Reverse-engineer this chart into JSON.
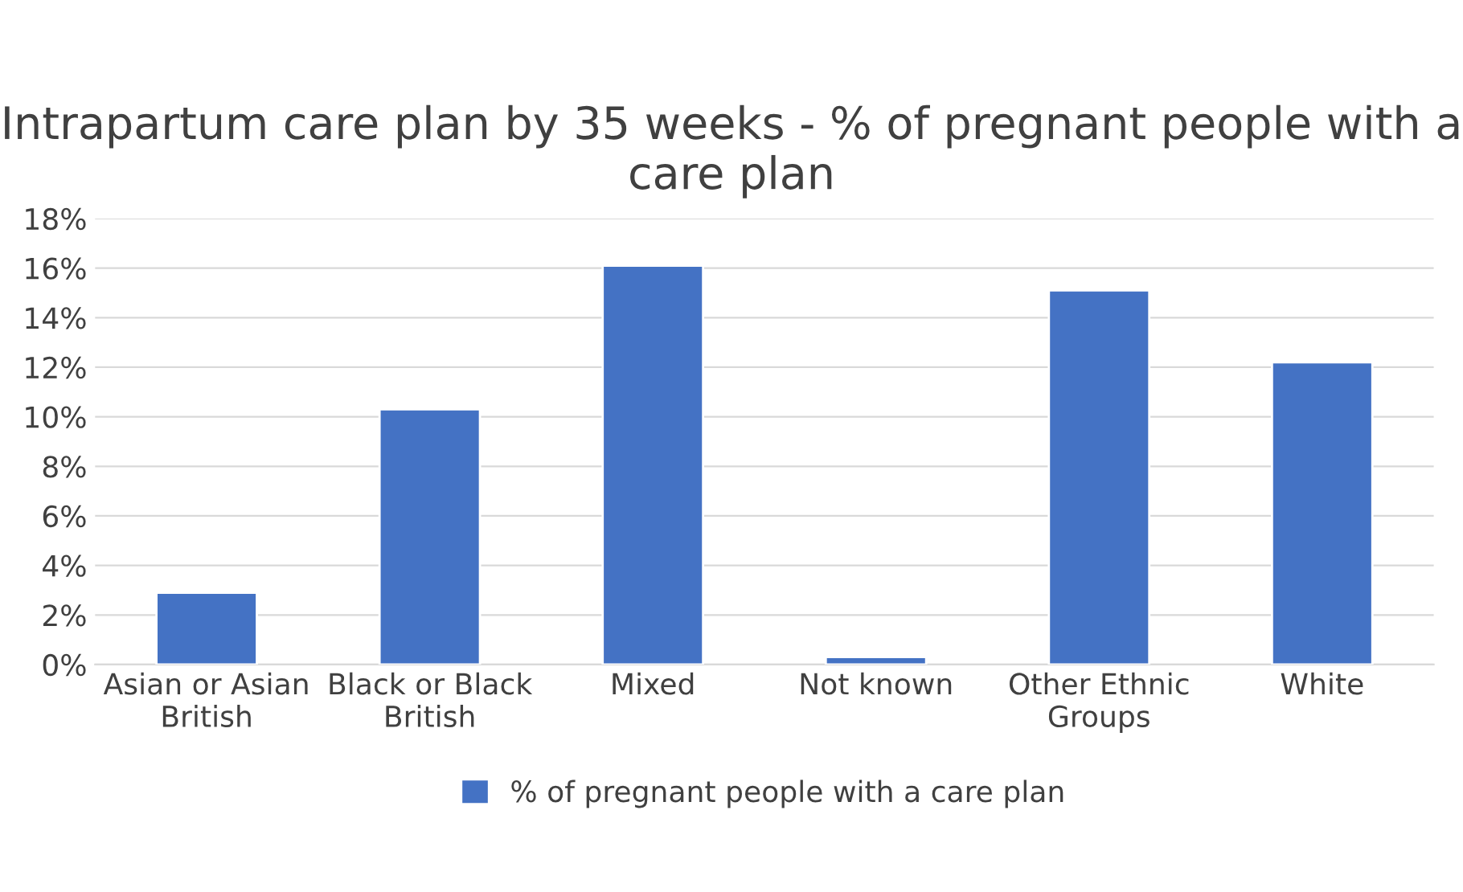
{
  "chart_data": {
    "type": "bar",
    "title": "Intrapartum care plan by 35 weeks - % of pregnant people with a care plan",
    "categories": [
      "Asian or Asian\nBritish",
      "Black or Black\nBritish",
      "Mixed",
      "Not known",
      "Other Ethnic\nGroups",
      "White"
    ],
    "series": [
      {
        "name": "% of pregnant people with a care plan",
        "color": "#4472c4",
        "values": [
          2.9,
          10.3,
          16.1,
          0.3,
          15.1,
          12.2
        ]
      }
    ],
    "ylim": [
      0,
      18
    ],
    "yticks": [
      {
        "value": 0,
        "label": "0%"
      },
      {
        "value": 2,
        "label": "2%"
      },
      {
        "value": 4,
        "label": "4%"
      },
      {
        "value": 6,
        "label": "6%"
      },
      {
        "value": 8,
        "label": "8%"
      },
      {
        "value": 10,
        "label": "10%"
      },
      {
        "value": 12,
        "label": "12%"
      },
      {
        "value": 14,
        "label": "14%"
      },
      {
        "value": 16,
        "label": "16%"
      },
      {
        "value": 18,
        "label": "18%"
      }
    ],
    "grid": "y",
    "legend": "bottom"
  }
}
